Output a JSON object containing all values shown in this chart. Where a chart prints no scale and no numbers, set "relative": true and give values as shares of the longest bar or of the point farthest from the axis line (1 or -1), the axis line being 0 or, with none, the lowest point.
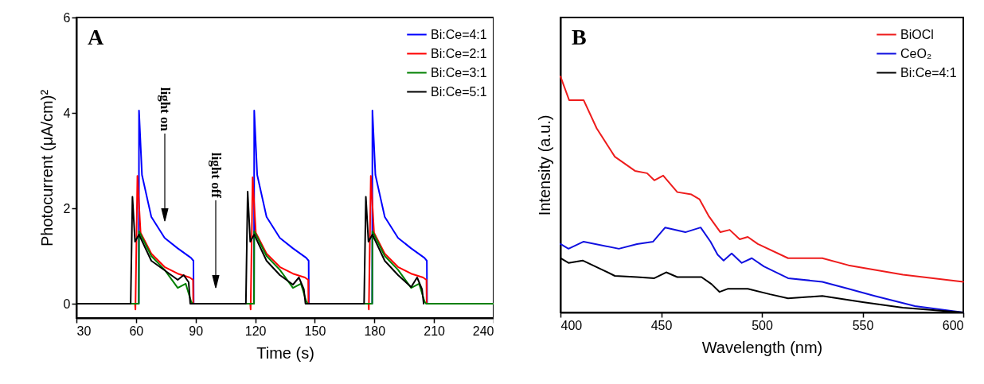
{
  "chart_data": [
    {
      "type": "line",
      "title": "A",
      "xlabel": "Time (s)",
      "ylabel": "Photocurrent (μA/cm)²",
      "xlim": [
        30,
        240
      ],
      "xticks": [
        30,
        60,
        90,
        120,
        150,
        180,
        210,
        240
      ],
      "ylim": [
        -0.3,
        6
      ],
      "yticks": [
        0,
        2,
        4,
        6
      ],
      "legend": "top right",
      "annotations": [
        "light on",
        "light off"
      ],
      "series": [
        {
          "name": "Bi:Ce=4:1",
          "color": "#0000ff",
          "x": [
            30,
            61.4,
            61.5,
            63,
            67.7,
            74.4,
            81,
            87.7,
            88.9,
            89,
            119.4,
            119.5,
            121,
            125.7,
            132.4,
            139,
            145.7,
            146.9,
            147,
            178.9,
            179,
            180.5,
            185.2,
            191.9,
            198.5,
            205.2,
            206.4,
            206.5
          ],
          "values": [
            0,
            0,
            4.05,
            2.7,
            1.82,
            1.38,
            1.16,
            0.96,
            0.9,
            0,
            0,
            4.05,
            2.7,
            1.82,
            1.38,
            1.16,
            0.96,
            0.9,
            0,
            0,
            4.05,
            2.7,
            1.82,
            1.38,
            1.16,
            0.96,
            0.9,
            0
          ]
        },
        {
          "name": "Bi:Ce=2:1",
          "color": "#ff0000",
          "x": [
            30,
            59.5,
            59.7,
            60.7,
            62.3,
            67.7,
            74.4,
            81,
            87,
            88.7,
            88.8,
            117.5,
            117.7,
            118.7,
            120.3,
            125.7,
            132.4,
            139,
            145,
            146.7,
            146.8,
            177,
            177.2,
            178.2,
            179.8,
            185.2,
            191.9,
            198.5,
            204.5,
            206.2,
            206.3
          ],
          "values": [
            0,
            0,
            -0.12,
            2.68,
            1.49,
            1.05,
            0.77,
            0.63,
            0.55,
            0.5,
            0,
            0,
            -0.12,
            2.65,
            1.49,
            1.05,
            0.77,
            0.63,
            0.55,
            0.5,
            0,
            0,
            -0.12,
            2.68,
            1.49,
            1.05,
            0.77,
            0.63,
            0.55,
            0.5,
            0
          ]
        },
        {
          "name": "Bi:Ce=3:1",
          "color": "#008000",
          "x": [
            30,
            61.4,
            61.5,
            67.7,
            74.4,
            81,
            85,
            87.7,
            88.5,
            119.4,
            119.5,
            125.7,
            132.4,
            139,
            143,
            145.7,
            146.5,
            178.9,
            179,
            185.2,
            191.9,
            198.5,
            202.5,
            205.2,
            206,
            240
          ],
          "values": [
            0,
            0,
            1.52,
            1.0,
            0.71,
            0.33,
            0.42,
            0.05,
            0,
            0,
            1.52,
            1.0,
            0.71,
            0.33,
            0.42,
            0.05,
            0,
            0,
            1.52,
            1.0,
            0.71,
            0.33,
            0.42,
            0.05,
            0,
            0
          ]
        },
        {
          "name": "Bi:Ce=5:1",
          "color": "#000000",
          "x": [
            30,
            57.3,
            58.2,
            59.5,
            61.5,
            67.7,
            74.4,
            81,
            84,
            86.5,
            87.3,
            115.3,
            116.2,
            117.5,
            119.5,
            125.7,
            132.4,
            139,
            142,
            144.5,
            145.3,
            174.8,
            175.7,
            177,
            179,
            185.2,
            191.9,
            198.5,
            201.5,
            204,
            204.8
          ],
          "values": [
            0,
            0,
            2.24,
            1.3,
            1.45,
            0.9,
            0.7,
            0.5,
            0.6,
            0.45,
            0,
            0,
            2.35,
            1.3,
            1.45,
            0.9,
            0.6,
            0.4,
            0.55,
            0.3,
            0,
            0,
            2.24,
            1.3,
            1.45,
            0.9,
            0.6,
            0.35,
            0.55,
            0.3,
            0
          ]
        }
      ]
    },
    {
      "type": "line",
      "title": "B",
      "xlabel": "Wavelength (nm)",
      "ylabel": "Intensity (a.u.)",
      "relative": true,
      "xlim": [
        400,
        600
      ],
      "xticks": [
        400,
        450,
        500,
        550,
        600
      ],
      "legend": "top right",
      "series": [
        {
          "name": "BiOCl",
          "color": "#ee1c1c",
          "x": [
            400,
            404.3,
            411.5,
            418,
            427,
            437,
            443,
            446.6,
            451,
            458,
            465,
            469,
            473.5,
            479.4,
            484,
            489,
            493,
            498,
            513,
            530,
            543,
            570,
            600
          ],
          "values": [
            1.0,
            0.9,
            0.9,
            0.78,
            0.66,
            0.6,
            0.59,
            0.56,
            0.58,
            0.51,
            0.5,
            0.48,
            0.41,
            0.34,
            0.35,
            0.31,
            0.32,
            0.29,
            0.23,
            0.23,
            0.2,
            0.16,
            0.13
          ]
        },
        {
          "name": "CeO₂",
          "color": "#1010e0",
          "x": [
            400,
            404,
            411.5,
            429,
            438,
            446,
            452,
            462,
            469.6,
            474.5,
            478,
            481,
            485,
            490,
            495,
            501,
            513,
            530,
            543,
            556,
            576,
            600
          ],
          "values": [
            0.29,
            0.27,
            0.3,
            0.27,
            0.29,
            0.3,
            0.36,
            0.34,
            0.36,
            0.3,
            0.245,
            0.22,
            0.25,
            0.21,
            0.23,
            0.195,
            0.145,
            0.13,
            0.1,
            0.07,
            0.027,
            0.0
          ]
        },
        {
          "name": "Bi:Ce=4:1",
          "color": "#000000",
          "x": [
            400,
            404,
            411,
            421,
            427,
            438,
            446.6,
            452.5,
            458,
            470,
            475,
            479,
            483,
            493,
            504,
            513,
            530,
            550,
            570,
            600
          ],
          "values": [
            0.23,
            0.21,
            0.22,
            0.18,
            0.155,
            0.15,
            0.145,
            0.17,
            0.15,
            0.15,
            0.12,
            0.087,
            0.1,
            0.1,
            0.077,
            0.06,
            0.07,
            0.044,
            0.02,
            0.0
          ]
        }
      ]
    }
  ]
}
